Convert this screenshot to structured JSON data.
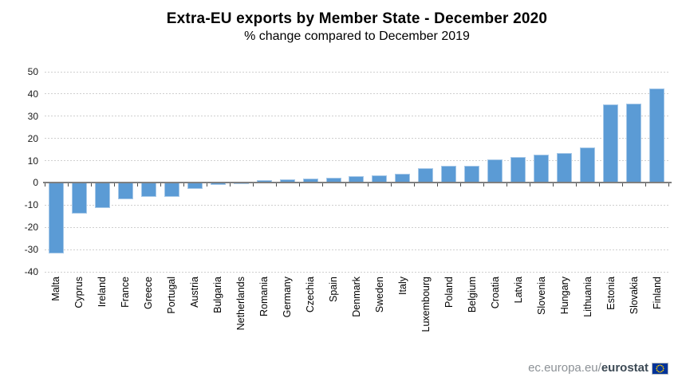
{
  "footer": {
    "url_prefix": "ec.europa.eu/",
    "brand": "eurostat"
  },
  "colors": {
    "bar": "#5B9BD5",
    "bar_border": "#A6C8E8",
    "gridline": "#CFCFCF",
    "axis_line": "#7F7F7F",
    "footer_gray": "#8C9196",
    "footer_brand": "#3D4A55",
    "flag_blue": "#003399",
    "flag_stars": "#FFCC00"
  },
  "chart_data": {
    "type": "bar",
    "title": "Extra-EU exports by Member State - December 2020",
    "subtitle": "% change compared to December 2019",
    "categories": [
      "Malta",
      "Cyprus",
      "Ireland",
      "France",
      "Greece",
      "Portugal",
      "Austria",
      "Bulgaria",
      "Netherlands",
      "Romania",
      "Germany",
      "Czechia",
      "Spain",
      "Denmark",
      "Sweden",
      "Italy",
      "Luxembourg",
      "Poland",
      "Belgium",
      "Croatia",
      "Latvia",
      "Slovenia",
      "Hungary",
      "Lithuania",
      "Estonia",
      "Slovakia",
      "Finland"
    ],
    "values": [
      -32.0,
      -13.9,
      -11.3,
      -7.5,
      -6.6,
      -6.4,
      -2.9,
      -1.0,
      -0.4,
      1.2,
      1.3,
      1.7,
      2.1,
      3.0,
      3.2,
      4.1,
      6.3,
      7.4,
      7.4,
      10.3,
      11.6,
      12.5,
      13.3,
      15.7,
      35.3,
      35.4,
      42.3
    ],
    "xlabel": "",
    "ylabel": "",
    "ylim": [
      -40,
      50
    ],
    "ytick_step": 10,
    "yticks": [
      50,
      40,
      30,
      20,
      10,
      0,
      -10,
      -20,
      -30,
      -40
    ],
    "grid": "horizontal-dashed",
    "legend": "none",
    "bar_orientation": "vertical",
    "x_label_rotation": 90
  }
}
